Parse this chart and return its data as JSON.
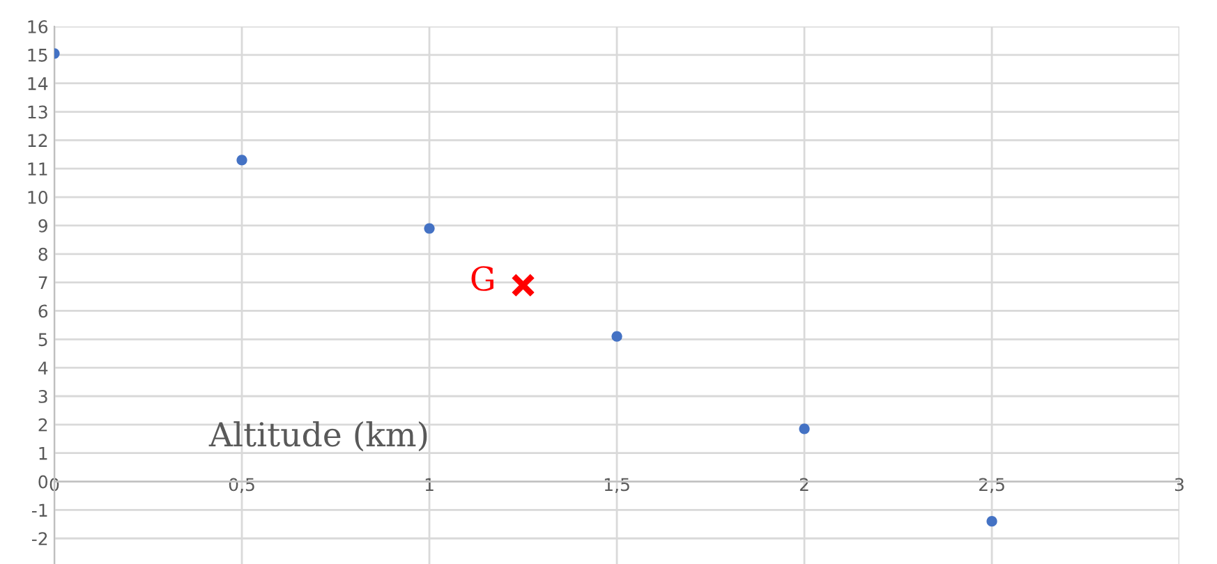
{
  "chart_data": {
    "type": "scatter",
    "xlabel": "Altitude (km)",
    "series": [
      {
        "color": "#4472c4",
        "marker": "circle",
        "x": [
          0,
          0.5,
          1,
          1.5,
          2,
          2.5
        ],
        "values": [
          15.05,
          11.3,
          8.9,
          5.1,
          1.85,
          -1.4
        ]
      },
      {
        "color": "#ff0000",
        "marker": "cross",
        "x": [
          1.25
        ],
        "values": [
          6.9
        ]
      }
    ],
    "annotations": [
      {
        "text": "G",
        "x": 1.25,
        "y": 6.9
      }
    ],
    "xlim": [
      0,
      3
    ],
    "xticks": [
      0,
      {
        "value": 0.5,
        "label": "0,5"
      },
      1,
      {
        "value": 1.5,
        "label": "1,5"
      },
      2,
      {
        "value": 2.5,
        "label": "2,5"
      },
      3
    ],
    "ylim": [
      -2.9,
      16
    ],
    "yticks": [
      -2,
      -1,
      0,
      1,
      2,
      3,
      4,
      5,
      6,
      7,
      8,
      9,
      10,
      11,
      12,
      13,
      14,
      15,
      16
    ],
    "grid": true
  }
}
